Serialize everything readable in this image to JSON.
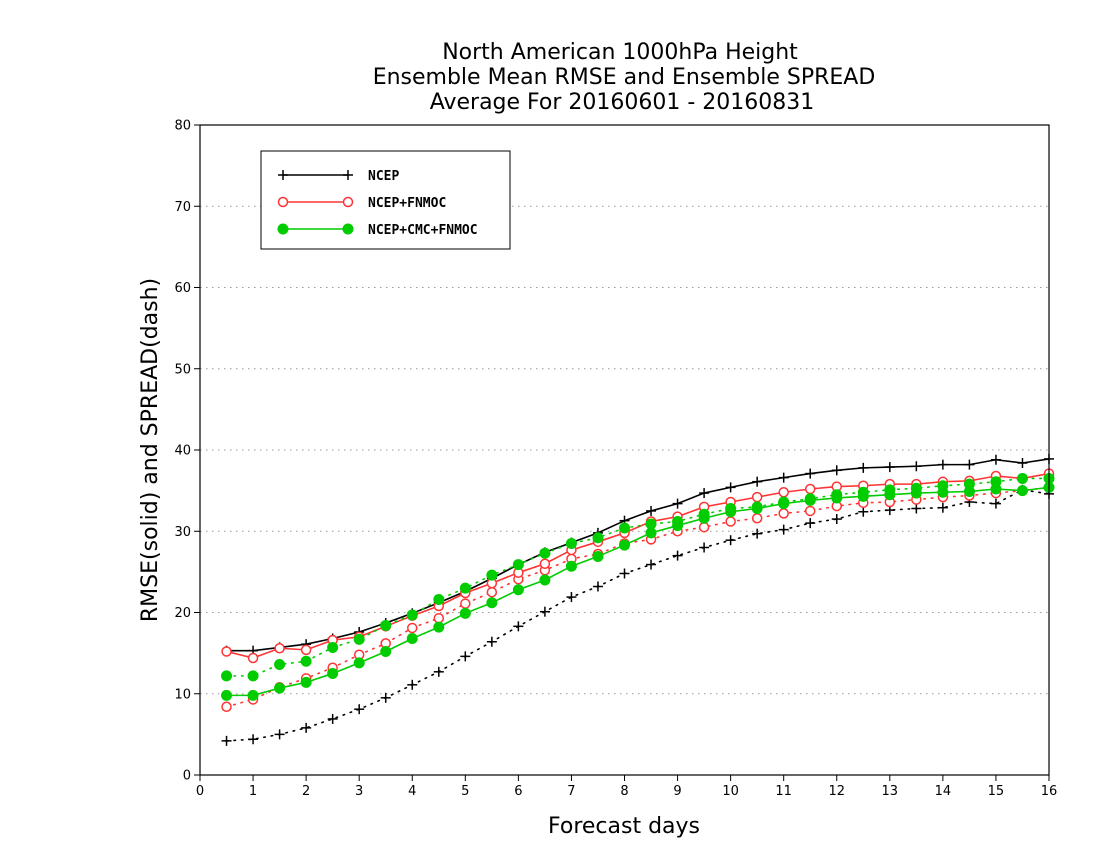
{
  "chart_data": {
    "type": "line",
    "title": [
      "North American 1000hPa Height",
      "Ensemble Mean RMSE and Ensemble SPREAD",
      "Average For 20160601 - 20160831"
    ],
    "xlabel": "Forecast days",
    "ylabel": "RMSE(solid) and SPREAD(dash)",
    "xlim": [
      0,
      16
    ],
    "ylim": [
      0,
      80
    ],
    "xticks": [
      "0",
      "1",
      "2",
      "3",
      "4",
      "5",
      "6",
      "7",
      "8",
      "9",
      "10",
      "11",
      "12",
      "13",
      "14",
      "15",
      "16"
    ],
    "yticks": [
      "0",
      "10",
      "20",
      "30",
      "40",
      "50",
      "60",
      "70",
      "80"
    ],
    "grid": "horizontal dotted",
    "legend_position": "top-left",
    "x": [
      0.5,
      1,
      1.5,
      2,
      2.5,
      3,
      3.5,
      4,
      4.5,
      5,
      5.5,
      6,
      6.5,
      7,
      7.5,
      8,
      8.5,
      9,
      9.5,
      10,
      10.5,
      11,
      11.5,
      12,
      12.5,
      13,
      13.5,
      14,
      14.5,
      15,
      15.5,
      16
    ],
    "series": [
      {
        "name": "NCEP",
        "color": "#000000",
        "marker": "plus",
        "rmse": [
          15.3,
          15.3,
          15.7,
          16.1,
          16.8,
          17.6,
          18.7,
          19.9,
          21.2,
          22.6,
          24.2,
          25.9,
          27.4,
          28.6,
          29.8,
          31.3,
          32.5,
          33.4,
          34.7,
          35.4,
          36.1,
          36.6,
          37.1,
          37.5,
          37.8,
          37.9,
          38.0,
          38.2,
          38.2,
          38.8,
          38.4,
          38.9
        ],
        "spread": [
          4.2,
          4.4,
          5.0,
          5.8,
          6.9,
          8.1,
          9.5,
          11.1,
          12.7,
          14.6,
          16.4,
          18.3,
          20.1,
          21.9,
          23.2,
          24.8,
          25.9,
          27.0,
          28.0,
          28.9,
          29.7,
          30.2,
          31.0,
          31.5,
          32.4,
          32.6,
          32.8,
          32.9,
          33.6,
          33.4,
          35.1,
          34.6
        ]
      },
      {
        "name": "NCEP+FNMOC",
        "color": "#ff3333",
        "marker": "open-circle",
        "rmse": [
          15.2,
          14.4,
          15.6,
          15.4,
          16.6,
          17.0,
          18.3,
          19.6,
          20.8,
          22.4,
          23.6,
          24.9,
          26.0,
          27.7,
          28.7,
          29.8,
          31.2,
          31.8,
          33.0,
          33.6,
          34.2,
          34.8,
          35.2,
          35.5,
          35.6,
          35.8,
          35.8,
          36.1,
          36.2,
          36.8,
          36.5,
          37.1
        ],
        "spread": [
          8.4,
          9.3,
          10.8,
          11.9,
          13.2,
          14.8,
          16.2,
          18.1,
          19.3,
          21.1,
          22.5,
          24.1,
          25.2,
          26.6,
          27.2,
          28.5,
          29.0,
          30.0,
          30.5,
          31.2,
          31.6,
          32.2,
          32.5,
          33.1,
          33.5,
          33.6,
          33.9,
          34.2,
          34.4,
          34.7,
          35.0,
          35.4
        ]
      },
      {
        "name": "NCEP+CMC+FNMOC",
        "color": "#00cc00",
        "marker": "filled-circle",
        "rmse": [
          9.8,
          9.8,
          10.7,
          11.4,
          12.5,
          13.8,
          15.2,
          16.8,
          18.2,
          19.9,
          21.2,
          22.8,
          24.0,
          25.7,
          26.9,
          28.3,
          29.8,
          30.7,
          31.6,
          32.4,
          32.8,
          33.4,
          33.8,
          34.1,
          34.3,
          34.5,
          34.7,
          34.8,
          34.9,
          35.2,
          35.0,
          35.4
        ],
        "spread": [
          12.2,
          12.2,
          13.6,
          14.0,
          15.7,
          16.7,
          18.4,
          19.7,
          21.6,
          23.0,
          24.6,
          25.9,
          27.3,
          28.5,
          29.2,
          30.4,
          30.9,
          31.2,
          32.1,
          32.8,
          33.0,
          33.6,
          34.0,
          34.5,
          34.8,
          35.1,
          35.3,
          35.6,
          35.8,
          36.1,
          36.5,
          36.5
        ]
      }
    ]
  }
}
